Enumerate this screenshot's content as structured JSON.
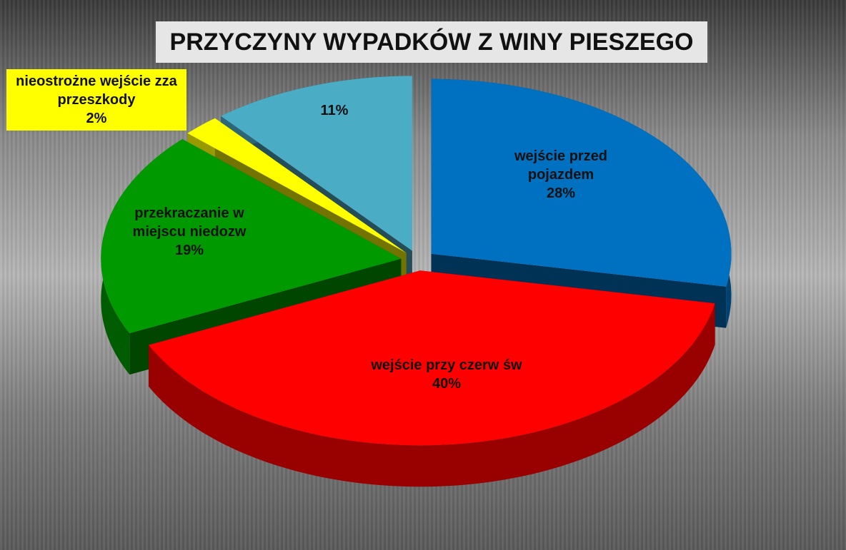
{
  "chart_data": {
    "type": "pie3d",
    "title": "PRZYCZYNY WYPADKÓW Z WINY PIESZEGO",
    "categories": [
      "wejście przed pojazdem",
      "wejście przy czerw św",
      "przekraczanie w miejscu niedozw",
      "nieostrożne wejście zza przeszkody",
      null
    ],
    "values": [
      28,
      40,
      19,
      2,
      11
    ],
    "value_labels": [
      "28%",
      "40%",
      "19%",
      "2%",
      "11%"
    ],
    "colors": [
      "#0070c0",
      "#ff0000",
      "#009a00",
      "#ffff00",
      "#4bacc6"
    ]
  }
}
